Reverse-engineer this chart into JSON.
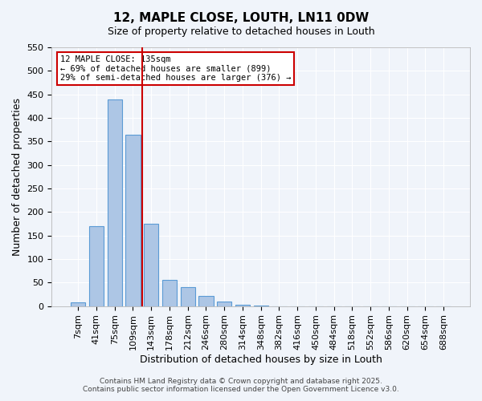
{
  "title_line1": "12, MAPLE CLOSE, LOUTH, LN11 0DW",
  "title_line2": "Size of property relative to detached houses in Louth",
  "bar_labels": [
    "7sqm",
    "41sqm",
    "75sqm",
    "109sqm",
    "143sqm",
    "178sqm",
    "212sqm",
    "246sqm",
    "280sqm",
    "314sqm",
    "348sqm",
    "382sqm",
    "416sqm",
    "450sqm",
    "484sqm",
    "518sqm",
    "552sqm",
    "586sqm",
    "620sqm",
    "654sqm",
    "688sqm"
  ],
  "bar_values": [
    8,
    170,
    440,
    365,
    175,
    55,
    40,
    22,
    10,
    3,
    1,
    0,
    0,
    0,
    0,
    0,
    0,
    0,
    0,
    0,
    0
  ],
  "bar_color": "#adc6e5",
  "bar_edge_color": "#5b9bd5",
  "ylabel": "Number of detached properties",
  "xlabel": "Distribution of detached houses by size in Louth",
  "ylim": [
    0,
    550
  ],
  "yticks": [
    0,
    50,
    100,
    150,
    200,
    250,
    300,
    350,
    400,
    450,
    500,
    550
  ],
  "vline_x": 3.5,
  "vline_color": "#cc0000",
  "annotation_title": "12 MAPLE CLOSE: 135sqm",
  "annotation_line1": "← 69% of detached houses are smaller (899)",
  "annotation_line2": "29% of semi-detached houses are larger (376) →",
  "annotation_box_color": "#ffffff",
  "annotation_box_edge_color": "#cc0000",
  "footer_line1": "Contains HM Land Registry data © Crown copyright and database right 2025.",
  "footer_line2": "Contains public sector information licensed under the Open Government Licence v3.0.",
  "background_color": "#f0f4fa",
  "grid_color": "#ffffff"
}
